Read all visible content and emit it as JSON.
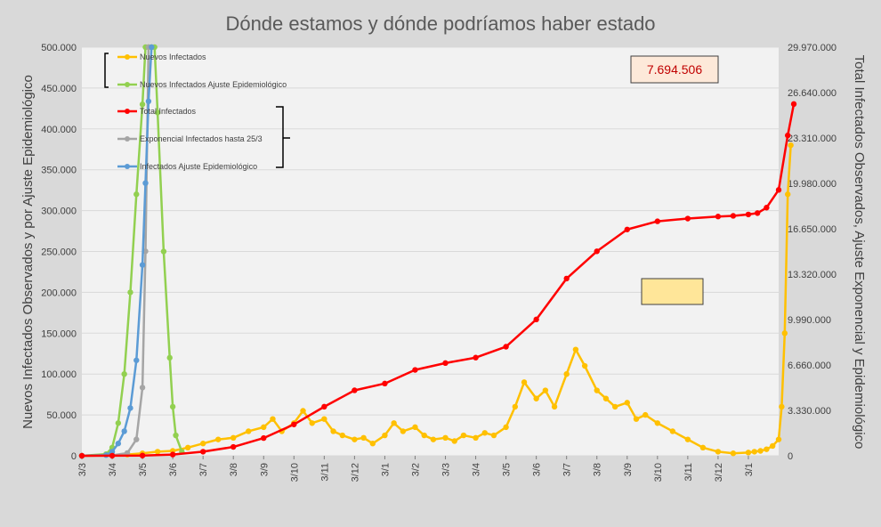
{
  "chart_data": {
    "type": "line",
    "title": "Dónde estamos y dónde podríamos haber estado",
    "ylabel_left": "Nuevos Infectados Observados y por Ajuste Epidemiológico",
    "ylabel_right": "Total Infectados Observados, Ajuste Exponencial y Epidemiológico",
    "ylim_left": [
      0,
      500000
    ],
    "ylim_right": [
      0,
      29970000
    ],
    "yticks_left": [
      "0",
      "50.000",
      "100.000",
      "150.000",
      "200.000",
      "250.000",
      "300.000",
      "350.000",
      "400.000",
      "450.000",
      "500.000"
    ],
    "yticks_right": [
      "0",
      "3.330.000",
      "6.660.000",
      "9.990.000",
      "13.320.000",
      "16.650.000",
      "19.980.000",
      "23.310.000",
      "26.640.000",
      "29.970.000"
    ],
    "xticks": [
      "3/3",
      "3/4",
      "3/5",
      "3/6",
      "3/7",
      "3/8",
      "3/9",
      "3/10",
      "3/11",
      "3/12",
      "3/1",
      "3/2",
      "3/3",
      "3/4",
      "3/5",
      "3/6",
      "3/7",
      "3/8",
      "3/9",
      "3/10",
      "3/11",
      "3/12",
      "3/1"
    ],
    "x_unit": "months since 3/3 (month ticks)",
    "grid": true,
    "legend_groups": [
      {
        "axis": "left",
        "items": [
          "Nuevos Infectados",
          "Nuevos Infectados Ajuste Epidemiológico"
        ]
      },
      {
        "axis": "right",
        "items": [
          "Total Infectados",
          "Exponencial Infectados hasta 25/3",
          "Infectados Ajuste Epidemiológico"
        ]
      }
    ],
    "callout_value": "7.694.506",
    "series": [
      {
        "name": "Nuevos Infectados",
        "axis": "left",
        "color": "#ffc000",
        "x": [
          0,
          1,
          1.5,
          2,
          2.5,
          3,
          3.5,
          4,
          4.5,
          5,
          5.5,
          6,
          6.3,
          6.6,
          7,
          7.3,
          7.6,
          8,
          8.3,
          8.6,
          9,
          9.3,
          9.6,
          10,
          10.3,
          10.6,
          11,
          11.3,
          11.6,
          12,
          12.3,
          12.6,
          13,
          13.3,
          13.6,
          14,
          14.3,
          14.6,
          15,
          15.3,
          15.6,
          16,
          16.3,
          16.6,
          17,
          17.3,
          17.6,
          18,
          18.3,
          18.6,
          19,
          19.5,
          20,
          20.5,
          21,
          21.5,
          22,
          22.2,
          22.4,
          22.6,
          22.8,
          23,
          23.1,
          23.2,
          23.3,
          23.4
        ],
        "values": [
          0,
          500,
          1500,
          3000,
          5000,
          6000,
          10000,
          15000,
          20000,
          22000,
          30000,
          35000,
          45000,
          30000,
          40000,
          55000,
          40000,
          45000,
          30000,
          25000,
          20000,
          22000,
          15000,
          25000,
          40000,
          30000,
          35000,
          25000,
          20000,
          22000,
          18000,
          25000,
          22000,
          28000,
          25000,
          35000,
          60000,
          90000,
          70000,
          80000,
          60000,
          100000,
          130000,
          110000,
          80000,
          70000,
          60000,
          65000,
          45000,
          50000,
          40000,
          30000,
          20000,
          10000,
          5000,
          3000,
          4000,
          5000,
          6000,
          8000,
          12000,
          20000,
          60000,
          150000,
          320000,
          380000
        ]
      },
      {
        "name": "Nuevos Infectados Ajuste Epidemiológico",
        "axis": "left",
        "color": "#92d050",
        "x": [
          0,
          0.8,
          1.0,
          1.2,
          1.4,
          1.6,
          1.8,
          2.0,
          2.1,
          2.2,
          2.3,
          2.4,
          2.5,
          2.7,
          2.9,
          3.0,
          3.1,
          3.3
        ],
        "values": [
          0,
          2000,
          10000,
          40000,
          100000,
          200000,
          320000,
          430000,
          500000,
          500000,
          500000,
          500000,
          420000,
          250000,
          120000,
          60000,
          25000,
          5000
        ]
      },
      {
        "name": "Total Infectados",
        "axis": "right",
        "color": "#ff0000",
        "x": [
          0,
          1,
          2,
          3,
          4,
          5,
          6,
          7,
          8,
          9,
          10,
          11,
          12,
          13,
          14,
          15,
          16,
          17,
          18,
          19,
          20,
          21,
          21.5,
          22,
          22.3,
          22.6,
          23,
          23.3,
          23.5
        ],
        "values": [
          0,
          5000,
          20000,
          90000,
          300000,
          650000,
          1300000,
          2300000,
          3600000,
          4800000,
          5300000,
          6300000,
          6800000,
          7200000,
          8000000,
          10000000,
          13000000,
          15000000,
          16600000,
          17200000,
          17400000,
          17550000,
          17600000,
          17700000,
          17800000,
          18200000,
          19500000,
          23500000,
          25800000
        ]
      },
      {
        "name": "Exponencial Infectados hasta 25/3",
        "axis": "right",
        "color": "#a5a5a5",
        "x": [
          0,
          1,
          1.5,
          1.8,
          2.0,
          2.1,
          2.2
        ],
        "values": [
          0,
          30000,
          200000,
          1200000,
          5000000,
          15000000,
          29970000
        ]
      },
      {
        "name": "Infectados Ajuste Epidemiológico",
        "axis": "right",
        "color": "#5b9bd5",
        "x": [
          0,
          0.8,
          1.0,
          1.2,
          1.4,
          1.6,
          1.8,
          2.0,
          2.1,
          2.2,
          2.3
        ],
        "values": [
          0,
          50000,
          300000,
          900000,
          1800000,
          3500000,
          7000000,
          14000000,
          20000000,
          26000000,
          29970000
        ]
      }
    ]
  }
}
